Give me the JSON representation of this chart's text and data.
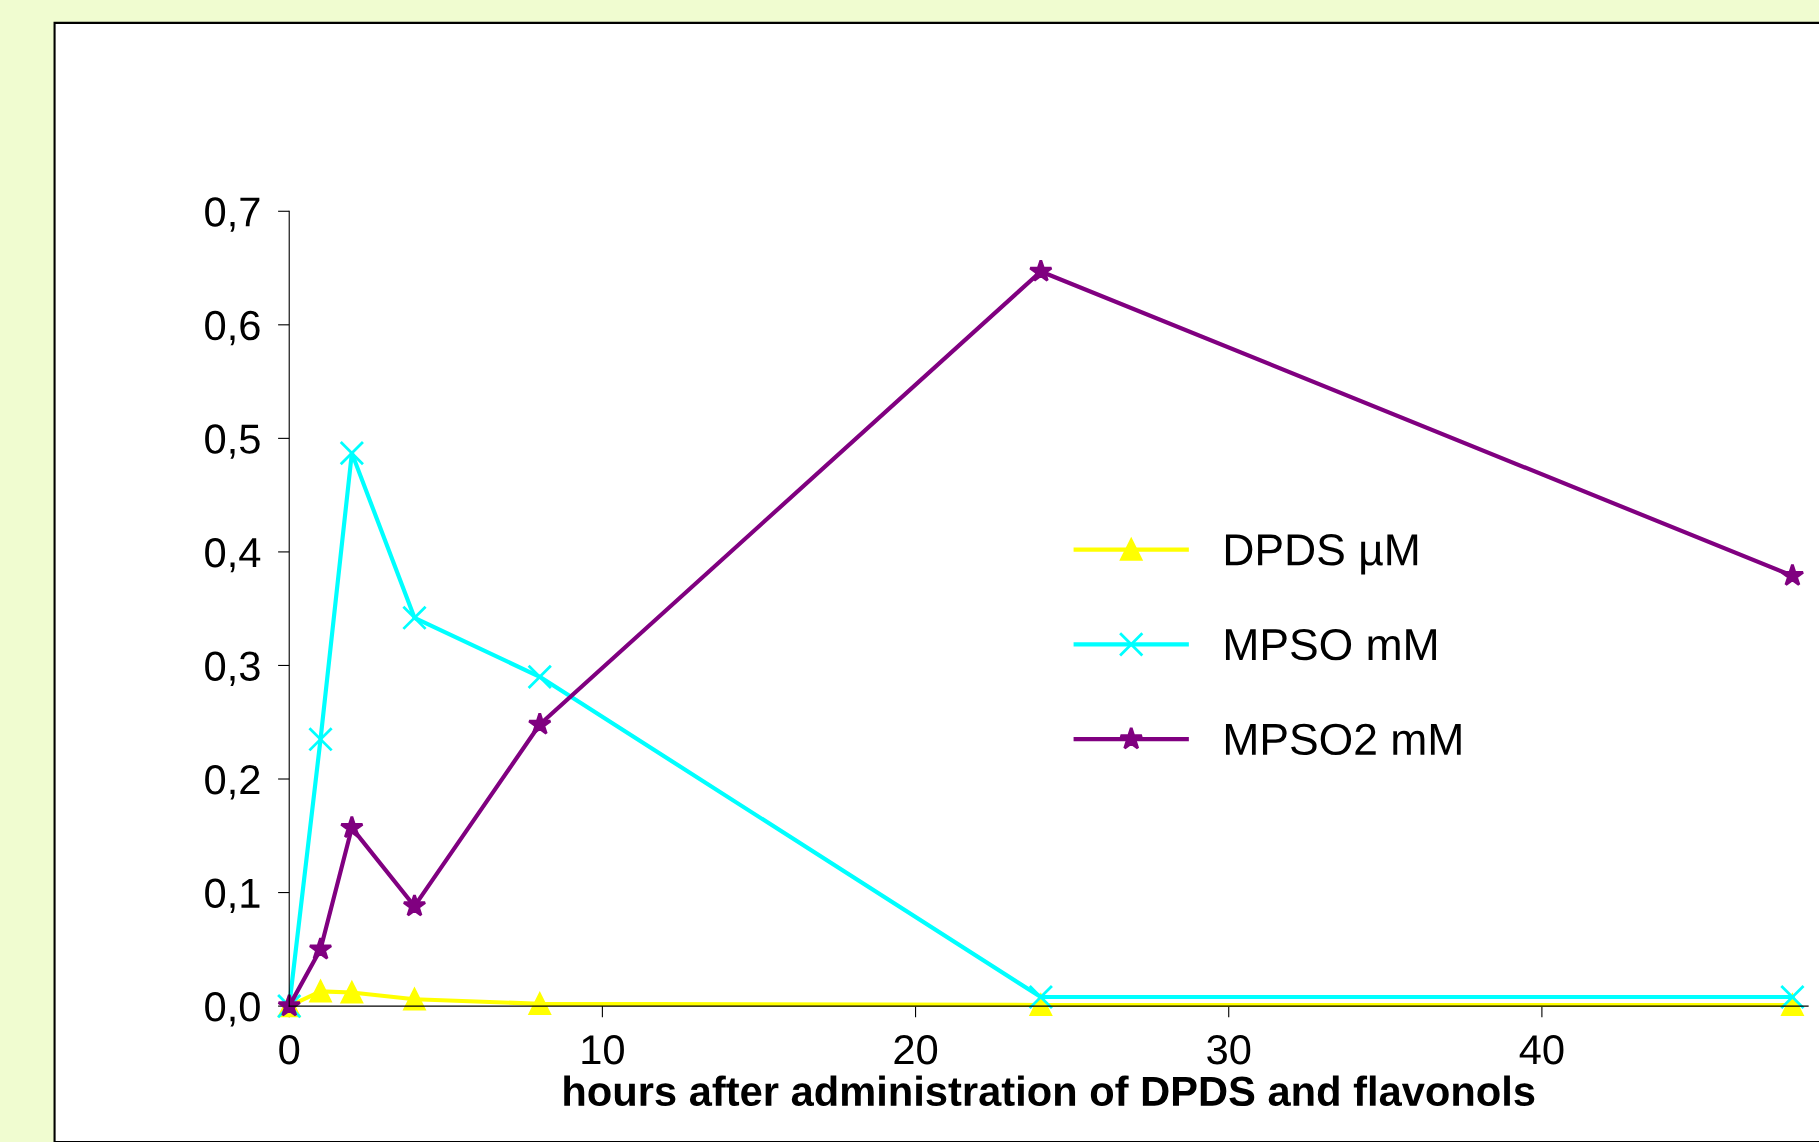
{
  "chart_data": {
    "type": "line",
    "xlabel": "hours after administration of DPDS and flavonols",
    "x": [
      0,
      1,
      2,
      4,
      8,
      24,
      48
    ],
    "series": [
      {
        "name": "DPDS µM",
        "color": "#ffff00",
        "marker": "triangle",
        "values": [
          0,
          0.013,
          0.012,
          0.006,
          0.002,
          0.001,
          0.001
        ]
      },
      {
        "name": "MPSO mM",
        "color": "#00ffff",
        "marker": "cross",
        "values": [
          0,
          0.235,
          0.487,
          0.342,
          0.29,
          0.008,
          0.008
        ]
      },
      {
        "name": "MPSO2 mM",
        "color": "#800080",
        "marker": "star",
        "values": [
          0,
          0.05,
          0.157,
          0.088,
          0.248,
          0.647,
          0.379
        ]
      }
    ],
    "xlim": [
      0,
      48.5
    ],
    "xticks": [
      0,
      10,
      20,
      30,
      40
    ],
    "ylim": [
      0,
      0.7
    ],
    "yticks": [
      {
        "value": 0,
        "label": "0,0"
      },
      {
        "value": 0.1,
        "label": "0,1"
      },
      {
        "value": 0.2,
        "label": "0,2"
      },
      {
        "value": 0.3,
        "label": "0,3"
      },
      {
        "value": 0.4,
        "label": "0,4"
      },
      {
        "value": 0.5,
        "label": "0,5"
      },
      {
        "value": 0.6,
        "label": "0,6"
      },
      {
        "value": 0.7,
        "label": "0,7"
      }
    ],
    "grid": false,
    "legend": "right",
    "line_style": "solid"
  }
}
